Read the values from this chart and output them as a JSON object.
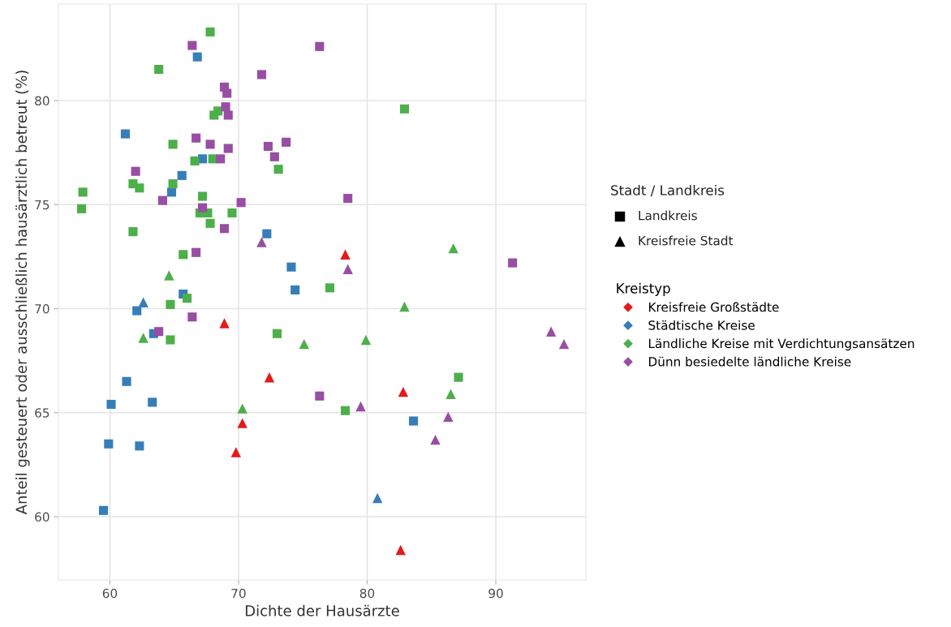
{
  "chart_data": {
    "type": "scatter",
    "xlabel": "Dichte der Hausärzte",
    "ylabel": "Anteil gesteuert oder ausschließlich hausärztlich betreut (%)",
    "xlim": [
      56.0,
      97.0
    ],
    "ylim": [
      56.96,
      84.64
    ],
    "xticks": [
      60,
      70,
      80,
      90
    ],
    "yticks": [
      60,
      65,
      70,
      75,
      80
    ],
    "grid": true,
    "legend": "right",
    "legend_title": "Kreistyp",
    "annotations": [
      "Stadt / Landkreis",
      "Landkreis",
      "Kreisfreie Stadt"
    ],
    "series": [
      {
        "name": "Kreisfreie Großstädte",
        "color": "#e41a1c",
        "marker": "triangle",
        "x": [
          78.3,
          68.9,
          72.4,
          70.3,
          69.8,
          82.8,
          82.6
        ],
        "values": [
          72.6,
          69.3,
          66.7,
          64.5,
          63.1,
          66.0,
          58.4
        ]
      },
      {
        "name": "Städtische Kreise",
        "color": "#377eb8",
        "marker": "square",
        "x": [
          66.8,
          61.2,
          67.2,
          65.6,
          64.8,
          72.2,
          74.1,
          74.4,
          65.7,
          62.1,
          63.4,
          61.3,
          60.1,
          63.3,
          59.9,
          62.3,
          59.5,
          83.6
        ],
        "values": [
          82.1,
          78.4,
          77.2,
          76.4,
          75.6,
          73.6,
          72.0,
          70.9,
          70.7,
          69.9,
          68.8,
          66.5,
          65.4,
          65.5,
          63.5,
          63.4,
          60.3,
          64.6
        ]
      },
      {
        "color": "#377eb8",
        "marker": "triangle",
        "x": [
          62.6,
          80.8
        ],
        "values": [
          70.3,
          60.9
        ]
      },
      {
        "name": "Ländliche Kreise mit Verdichtungsansätzen",
        "color": "#4daf4a",
        "marker": "square",
        "x": [
          67.8,
          63.8,
          68.4,
          68.1,
          64.9,
          66.6,
          68.0,
          73.1,
          57.9,
          61.8,
          62.3,
          64.9,
          57.8,
          67.2,
          67.0,
          67.6,
          67.8,
          69.5,
          61.8,
          65.7,
          66.0,
          64.7,
          64.7,
          73.0,
          82.9,
          77.1,
          87.1,
          78.3
        ],
        "values": [
          83.3,
          81.5,
          79.5,
          79.3,
          77.9,
          77.1,
          77.2,
          76.7,
          75.6,
          76.0,
          75.8,
          76.0,
          74.8,
          75.4,
          74.6,
          74.6,
          74.1,
          74.6,
          73.7,
          72.6,
          70.5,
          70.2,
          68.5,
          68.8,
          79.6,
          71.0,
          66.7,
          65.1
        ]
      },
      {
        "color": "#4daf4a",
        "marker": "triangle",
        "x": [
          64.6,
          62.6,
          75.1,
          70.3,
          86.7,
          82.9,
          79.9,
          86.5
        ],
        "values": [
          71.6,
          68.6,
          68.3,
          65.2,
          72.9,
          70.1,
          68.5,
          65.9
        ]
      },
      {
        "name": "Dünn besiedelte ländliche Kreise",
        "color": "#984ea3",
        "marker": "square",
        "x": [
          66.4,
          76.3,
          71.8,
          68.9,
          69.1,
          69.0,
          69.2,
          66.7,
          67.8,
          69.2,
          72.3,
          73.7,
          72.8,
          68.6,
          62.0,
          64.1,
          70.2,
          67.2,
          68.9,
          66.7,
          66.4,
          63.8,
          76.3,
          78.5,
          91.3
        ],
        "values": [
          82.65,
          82.6,
          81.25,
          80.65,
          80.35,
          79.7,
          79.3,
          78.2,
          77.9,
          77.7,
          77.8,
          78.0,
          77.3,
          77.2,
          76.6,
          75.2,
          75.1,
          74.85,
          73.85,
          72.7,
          69.6,
          68.9,
          65.8,
          75.3,
          72.2
        ]
      },
      {
        "color": "#984ea3",
        "marker": "triangle",
        "x": [
          71.8,
          78.5,
          94.3,
          95.3,
          79.5,
          86.3,
          85.3
        ],
        "values": [
          73.2,
          71.9,
          68.9,
          68.3,
          65.3,
          64.8,
          63.7
        ]
      }
    ]
  }
}
